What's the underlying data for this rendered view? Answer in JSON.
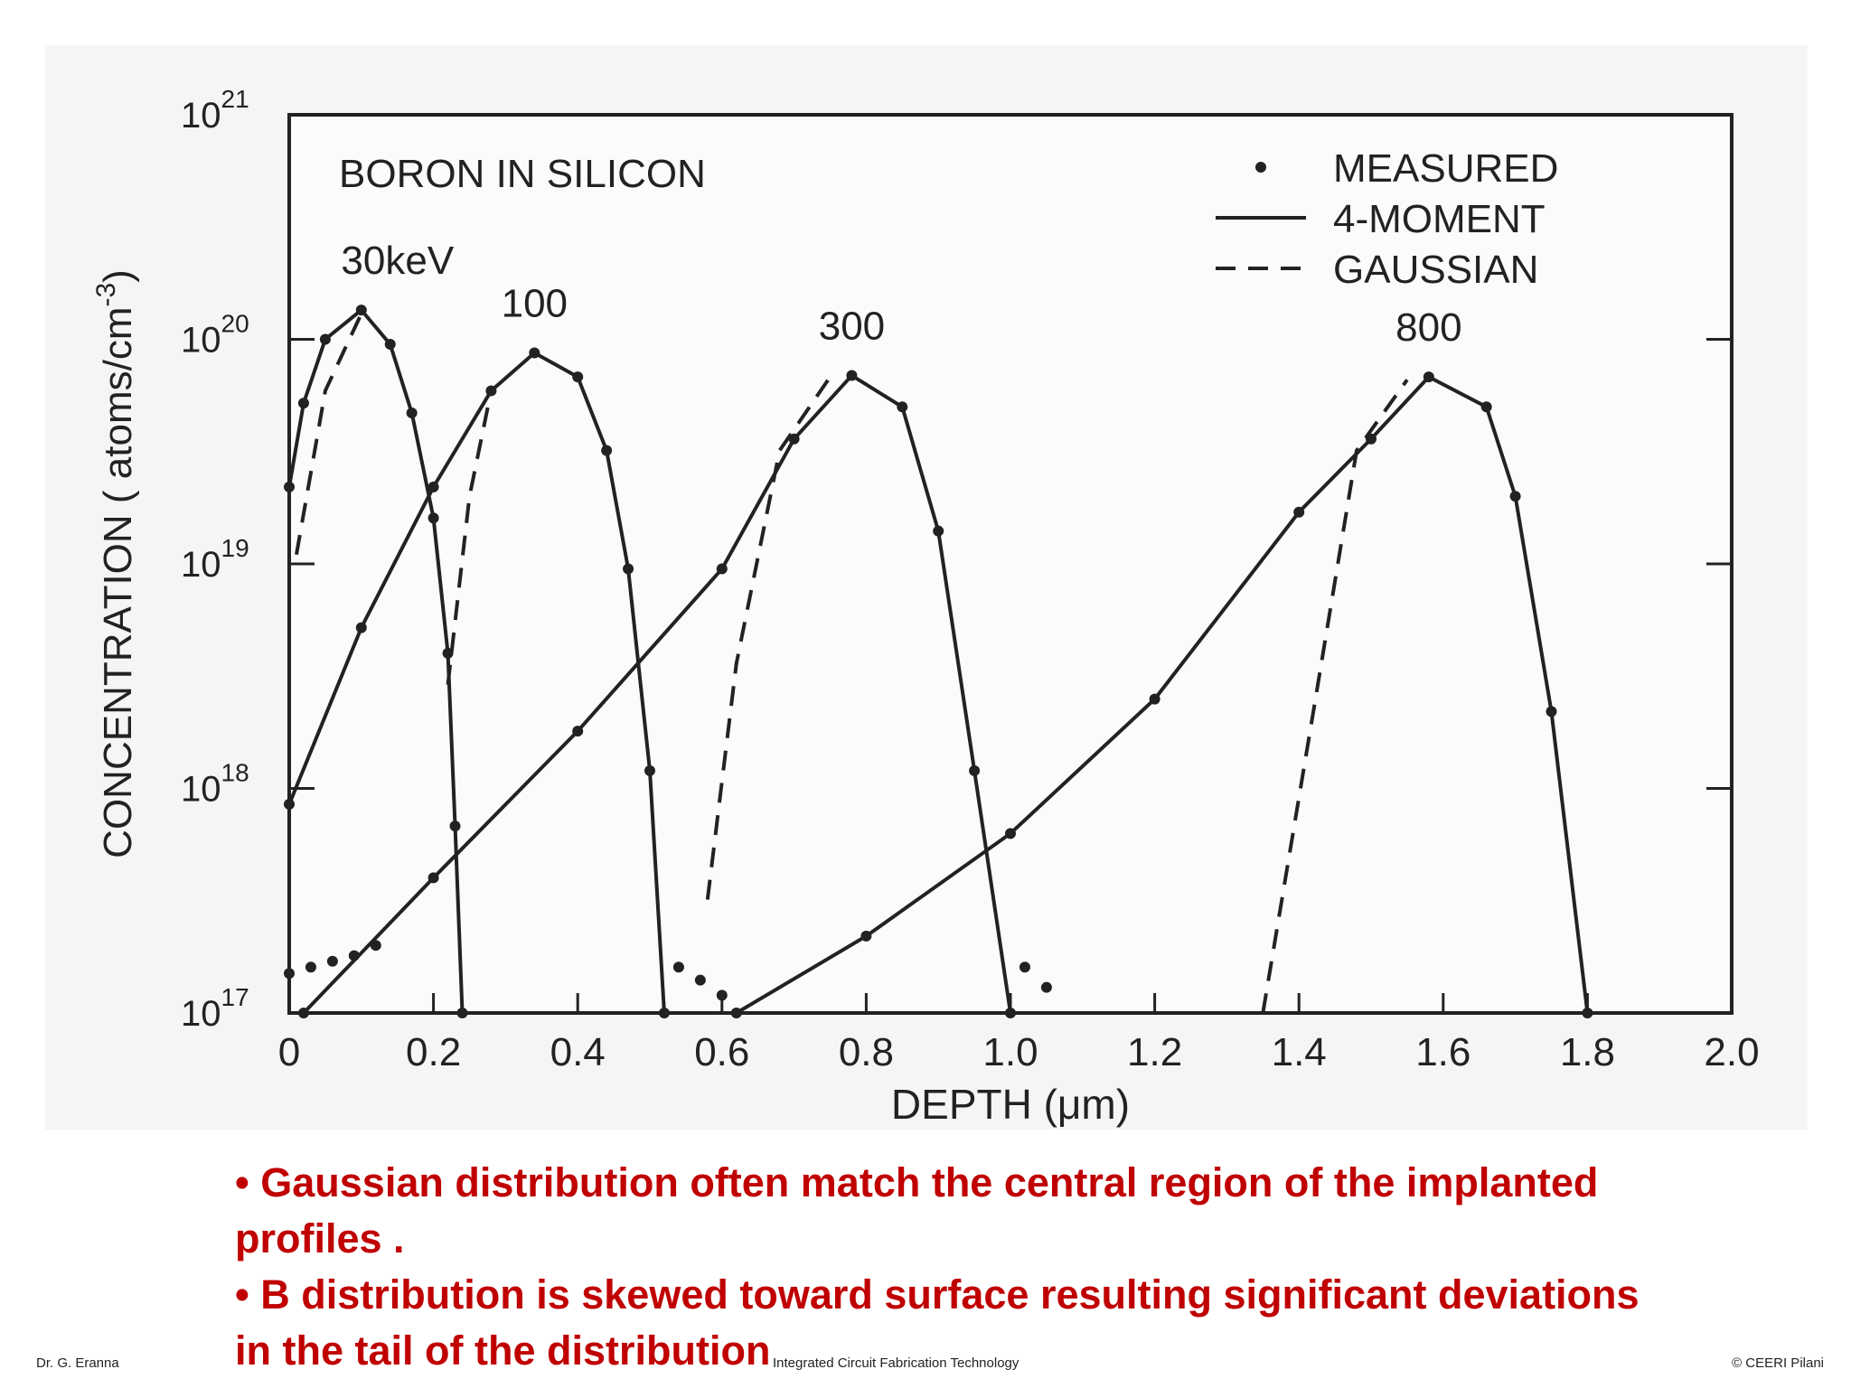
{
  "chart_data": {
    "type": "line",
    "log_y": true,
    "title": "BORON IN SILICON",
    "x_label": "DEPTH (μm)",
    "y_label": "CONCENTRATION ( atoms/cm",
    "y_label_exponent": "-3",
    "y_label_end": ")",
    "xlim": [
      0,
      2
    ],
    "ylim": [
      1e+17,
      1e+21
    ],
    "xticks": [
      0,
      0.2,
      0.4,
      0.6,
      0.8,
      {
        "value": 1,
        "label": "1.0"
      },
      1.2,
      1.4,
      1.6,
      1.8,
      {
        "value": 2,
        "label": "2.0"
      }
    ],
    "yticks": [
      {
        "value": 1e+17,
        "label": "10",
        "exponent": "17"
      },
      {
        "value": 1e+18,
        "label": "10",
        "exponent": "18"
      },
      {
        "value": 1e+19,
        "label": "10",
        "exponent": "19"
      },
      {
        "value": 1e+20,
        "label": "10",
        "exponent": "20"
      },
      {
        "value": 1e+21,
        "label": "10",
        "exponent": "21"
      }
    ],
    "legend": [
      {
        "label": "MEASURED",
        "style": "dot"
      },
      {
        "label": "4-MOMENT",
        "style": "solid"
      },
      {
        "label": "GAUSSIAN",
        "style": "dashed"
      }
    ],
    "color": "#222222",
    "series": [
      {
        "name": "30keV",
        "x": [
          0,
          0.02,
          0.05,
          0.1,
          0.14,
          0.17,
          0.2,
          0.22,
          0.23,
          0.24
        ],
        "values": [
          2.2e+19,
          5.2e+19,
          1e+20,
          1.35e+20,
          9.5e+19,
          4.7e+19,
          1.6e+19,
          4e+18,
          6.8e+17,
          1e+17
        ],
        "gaussian": {
          "x": [
            0.01,
            0.05,
            0.1
          ],
          "values": [
            1.1e+19,
            5.9e+19,
            1.3e+20
          ]
        },
        "measured_tail": {
          "x": [
            0,
            0.03,
            0.06,
            0.09,
            0.12
          ],
          "values": [
            1.5e+17,
            1.6e+17,
            1.7e+17,
            1.8e+17,
            2e+17
          ]
        }
      },
      {
        "name": "100",
        "x": [
          0,
          0.1,
          0.2,
          0.28,
          0.34,
          0.4,
          0.44,
          0.47,
          0.5,
          0.52
        ],
        "values": [
          8.5e+17,
          5.2e+18,
          2.2e+19,
          5.9e+19,
          8.7e+19,
          6.8e+19,
          3.2e+19,
          9.5e+18,
          1.2e+18,
          1e+17
        ],
        "gaussian": {
          "x": [
            0.22,
            0.25,
            0.28
          ],
          "values": [
            2.9e+18,
            2e+19,
            5.9e+19
          ]
        },
        "measured_tail": {
          "x": [
            0.54,
            0.57,
            0.6
          ],
          "values": [
            1.6e+17,
            1.4e+17,
            1.2e+17
          ]
        }
      },
      {
        "name": "300",
        "x": [
          0.02,
          0.2,
          0.4,
          0.6,
          0.7,
          0.78,
          0.85,
          0.9,
          0.95,
          1.0
        ],
        "values": [
          1e+17,
          4e+17,
          1.8e+18,
          9.5e+18,
          3.6e+19,
          6.9e+19,
          5e+19,
          1.4e+19,
          1.2e+18,
          1e+17
        ],
        "gaussian": {
          "x": [
            0.58,
            0.62,
            0.68,
            0.75
          ],
          "values": [
            3.2e+17,
            3.6e+18,
            3.2e+19,
            6.8e+19
          ]
        },
        "measured_tail": {
          "x": [
            1.02,
            1.05
          ],
          "values": [
            1.6e+17,
            1.3e+17
          ]
        }
      },
      {
        "name": "800",
        "x": [
          0.62,
          0.8,
          1.0,
          1.2,
          1.4,
          1.5,
          1.58,
          1.66,
          1.7,
          1.75,
          1.8
        ],
        "values": [
          1e+17,
          2.2e+17,
          6.3e+17,
          2.5e+18,
          1.7e+19,
          3.6e+19,
          6.8e+19,
          5e+19,
          2e+19,
          2.2e+18,
          1e+17
        ],
        "gaussian": {
          "x": [
            1.35,
            1.42,
            1.48,
            1.55
          ],
          "values": [
            1e+17,
            2.2e+18,
            3.2e+19,
            6.6e+19
          ]
        }
      }
    ]
  },
  "bullets": [
    "Gaussian distribution often match the central region of the implanted profiles .",
    "B distribution is skewed toward surface resulting significant deviations in the tail of the distribution"
  ],
  "footer": {
    "left": "Dr. G. Eranna",
    "center": "Integrated Circuit Fabrication Technology",
    "right": "© CEERI Pilani"
  }
}
